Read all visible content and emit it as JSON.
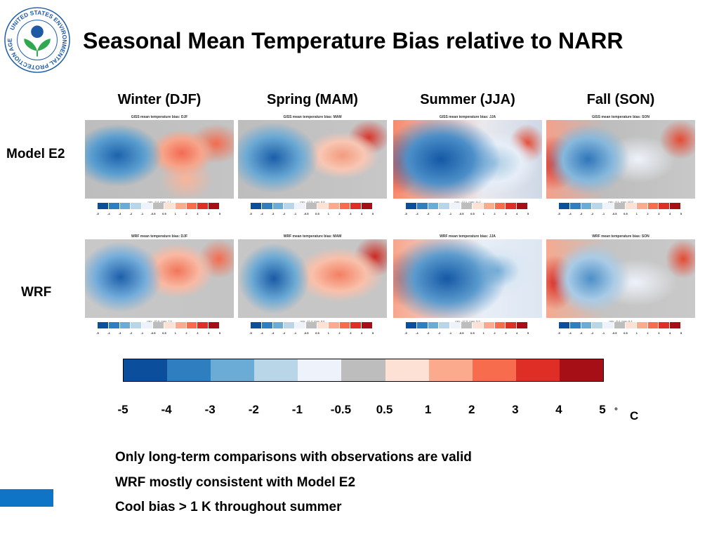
{
  "logo": {
    "text": "UNITED STATES ENVIRONMENTAL PROTECTION AGENCY",
    "colors": {
      "ring": "#1c5aa6",
      "leaf": "#2fa84f",
      "sky": "#1c5aa6"
    }
  },
  "title": "Seasonal Mean Temperature Bias relative to NARR",
  "seasons": [
    "Winter (DJF)",
    "Spring (MAM)",
    "Summer (JJA)",
    "Fall (SON)"
  ],
  "row_labels": [
    "Model E2",
    "WRF"
  ],
  "panels": [
    {
      "title": "GISS mean temperature bias: DJF",
      "minmax": "min: -9.4, max: 7.7",
      "style": "giss-djf"
    },
    {
      "title": "GISS mean temperature bias: MAM",
      "minmax": "min: -13.5, max: 8.8",
      "style": "giss-mam"
    },
    {
      "title": "GISS mean temperature bias: JJA",
      "minmax": "min: -13.1, max: 11.2",
      "style": "giss-jja"
    },
    {
      "title": "GISS mean temperature bias: SON",
      "minmax": "min: -9.1, max: 10.0",
      "style": "giss-son"
    },
    {
      "title": "WRF mean temperature bias: DJF",
      "minmax": "min: -10.6, max: 7.9",
      "style": "wrf-djf"
    },
    {
      "title": "WRF mean temperature bias: MAM",
      "minmax": "min: -11.4, max: 8.6",
      "style": "wrf-mam"
    },
    {
      "title": "WRF mean temperature bias: JJA",
      "minmax": "min: -12.0, max: 5.9",
      "style": "wrf-jja"
    },
    {
      "title": "WRF mean temperature bias: SON",
      "minmax": "min: -8.4, max: 6.4",
      "style": "wrf-son"
    }
  ],
  "colorbar": {
    "colors": [
      "#0b4f9c",
      "#2f7fc0",
      "#6aacd6",
      "#b9d6e8",
      "#eef3fb",
      "#bdbdbd",
      "#fde1d5",
      "#fbaa8d",
      "#f86c4e",
      "#de2e26",
      "#a50f15"
    ],
    "ticks": [
      "-5",
      "-4",
      "-3",
      "-2",
      "-1",
      "-0.5",
      "0.5",
      "1",
      "2",
      "3",
      "4",
      "5"
    ],
    "degree_symbol": "°",
    "unit": "C"
  },
  "bullets": [
    "Only long-term comparisons with observations are valid",
    "WRF mostly consistent with Model E2",
    "Cool bias > 1 K throughout summer"
  ]
}
